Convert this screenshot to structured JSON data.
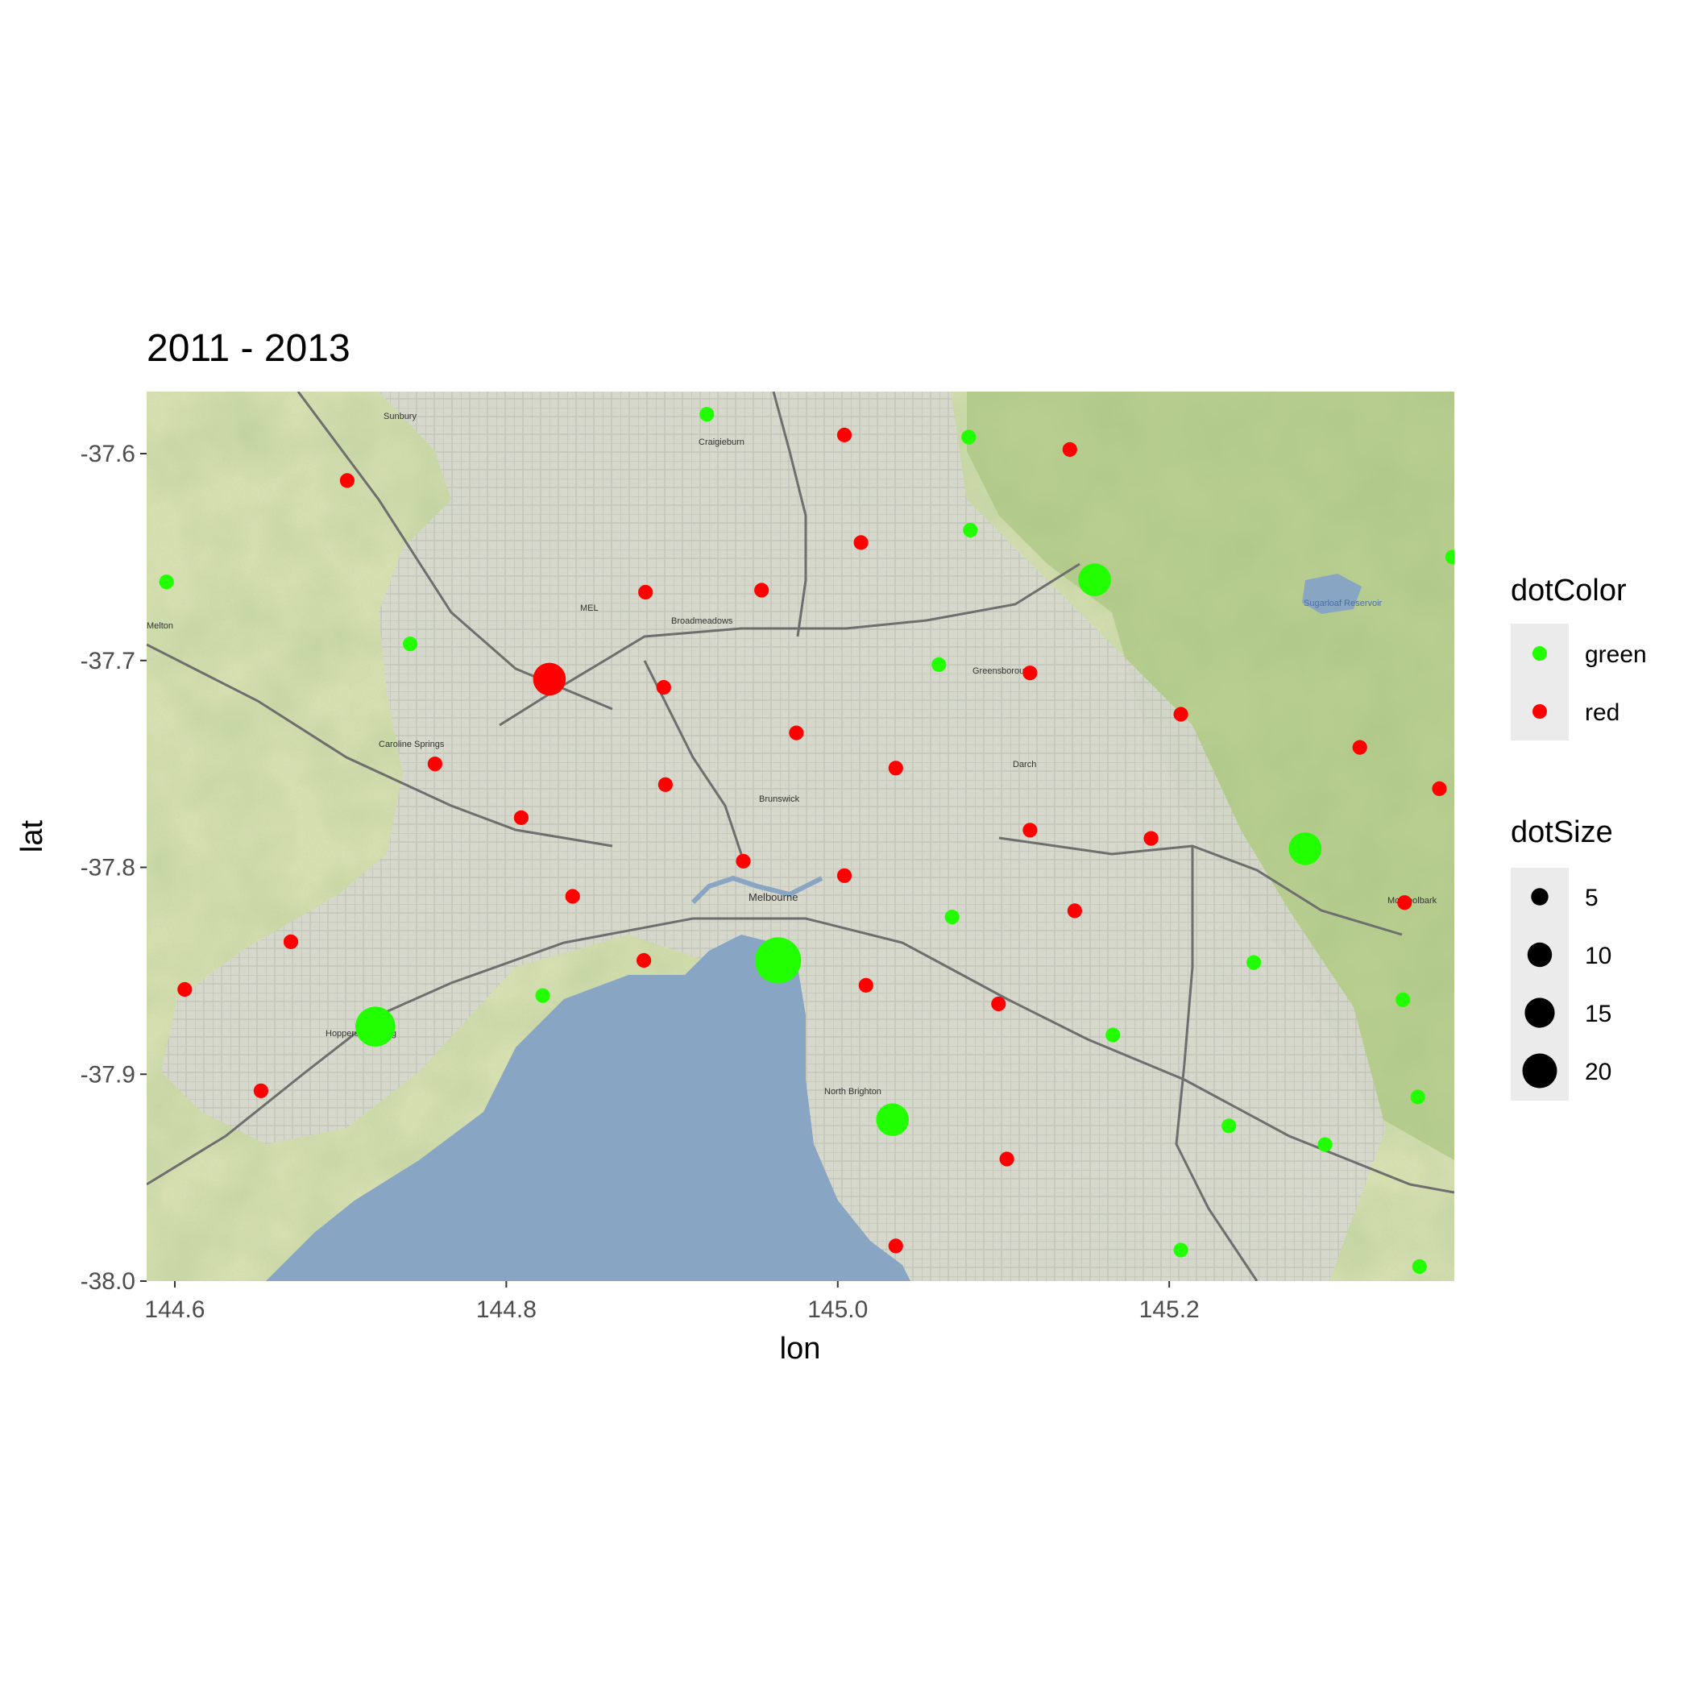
{
  "chart_data": {
    "type": "scatter",
    "title": "2011 - 2013",
    "xlabel": "lon",
    "ylabel": "lat",
    "xlim": [
      144.583,
      145.372
    ],
    "ylim": [
      -38.0,
      -37.57
    ],
    "x_ticks": [
      144.6,
      144.8,
      145.0,
      145.2
    ],
    "x_tick_labels": [
      "144.6",
      "144.8",
      "145.0",
      "145.2"
    ],
    "y_ticks": [
      -37.6,
      -37.7,
      -37.8,
      -37.9,
      -38.0
    ],
    "y_tick_labels": [
      "-37.6",
      "-37.7",
      "-37.8",
      "-37.9",
      "-38.0"
    ],
    "background": "street map of Melbourne (terrain tiles) with Port Phillip Bay",
    "map_labels": [
      "Sunbury",
      "Craigieburn",
      "MEL",
      "Broadmeadows",
      "Caroline Springs",
      "Greensborough",
      "Sugarloaf Reservoir",
      "Darch",
      "Brunswick",
      "Melbourne",
      "Hoppers Crossing",
      "North Brighton",
      "Mooroolbark",
      "Melton"
    ],
    "colors": {
      "green": "#22ff00",
      "red": "#ff0000"
    },
    "legend": {
      "color_title": "dotColor",
      "color_entries": [
        {
          "label": "green",
          "color": "#22ff00"
        },
        {
          "label": "red",
          "color": "#ff0000"
        }
      ],
      "size_title": "dotSize",
      "size_entries": [
        {
          "label": "5",
          "value": 5
        },
        {
          "label": "10",
          "value": 10
        },
        {
          "label": "15",
          "value": 15
        },
        {
          "label": "20",
          "value": 20
        }
      ],
      "placement": "right"
    },
    "series": [
      {
        "name": "green",
        "points": [
          {
            "lon": 144.921,
            "lat": -37.581,
            "size": 2
          },
          {
            "lon": 145.079,
            "lat": -37.592,
            "size": 2
          },
          {
            "lon": 145.08,
            "lat": -37.637,
            "size": 2
          },
          {
            "lon": 145.155,
            "lat": -37.661,
            "size": 10
          },
          {
            "lon": 144.595,
            "lat": -37.662,
            "size": 2
          },
          {
            "lon": 145.371,
            "lat": -37.65,
            "size": 2
          },
          {
            "lon": 144.742,
            "lat": -37.692,
            "size": 2
          },
          {
            "lon": 145.061,
            "lat": -37.702,
            "size": 2
          },
          {
            "lon": 145.282,
            "lat": -37.791,
            "size": 10
          },
          {
            "lon": 145.069,
            "lat": -37.824,
            "size": 2
          },
          {
            "lon": 144.964,
            "lat": -37.845,
            "size": 20
          },
          {
            "lon": 145.251,
            "lat": -37.846,
            "size": 2
          },
          {
            "lon": 144.822,
            "lat": -37.862,
            "size": 2
          },
          {
            "lon": 145.341,
            "lat": -37.864,
            "size": 2
          },
          {
            "lon": 144.721,
            "lat": -37.877,
            "size": 15
          },
          {
            "lon": 145.166,
            "lat": -37.881,
            "size": 2
          },
          {
            "lon": 145.35,
            "lat": -37.911,
            "size": 2
          },
          {
            "lon": 145.033,
            "lat": -37.922,
            "size": 10
          },
          {
            "lon": 145.236,
            "lat": -37.925,
            "size": 2
          },
          {
            "lon": 145.294,
            "lat": -37.934,
            "size": 2
          },
          {
            "lon": 145.207,
            "lat": -37.985,
            "size": 2
          },
          {
            "lon": 145.351,
            "lat": -37.993,
            "size": 2
          }
        ]
      },
      {
        "name": "red",
        "points": [
          {
            "lon": 145.004,
            "lat": -37.591,
            "size": 2
          },
          {
            "lon": 145.14,
            "lat": -37.598,
            "size": 2
          },
          {
            "lon": 144.704,
            "lat": -37.613,
            "size": 2
          },
          {
            "lon": 145.014,
            "lat": -37.643,
            "size": 2
          },
          {
            "lon": 144.884,
            "lat": -37.667,
            "size": 2
          },
          {
            "lon": 144.954,
            "lat": -37.666,
            "size": 2
          },
          {
            "lon": 144.826,
            "lat": -37.709,
            "size": 10
          },
          {
            "lon": 144.895,
            "lat": -37.713,
            "size": 2
          },
          {
            "lon": 145.116,
            "lat": -37.706,
            "size": 2
          },
          {
            "lon": 145.207,
            "lat": -37.726,
            "size": 2
          },
          {
            "lon": 144.975,
            "lat": -37.735,
            "size": 2
          },
          {
            "lon": 145.315,
            "lat": -37.742,
            "size": 2
          },
          {
            "lon": 144.757,
            "lat": -37.75,
            "size": 2
          },
          {
            "lon": 145.035,
            "lat": -37.752,
            "size": 2
          },
          {
            "lon": 144.896,
            "lat": -37.76,
            "size": 2
          },
          {
            "lon": 145.363,
            "lat": -37.762,
            "size": 2
          },
          {
            "lon": 144.809,
            "lat": -37.776,
            "size": 2
          },
          {
            "lon": 145.116,
            "lat": -37.782,
            "size": 2
          },
          {
            "lon": 145.189,
            "lat": -37.786,
            "size": 2
          },
          {
            "lon": 144.943,
            "lat": -37.797,
            "size": 2
          },
          {
            "lon": 145.004,
            "lat": -37.804,
            "size": 2
          },
          {
            "lon": 144.84,
            "lat": -37.814,
            "size": 2
          },
          {
            "lon": 145.342,
            "lat": -37.817,
            "size": 2
          },
          {
            "lon": 145.143,
            "lat": -37.821,
            "size": 2
          },
          {
            "lon": 144.67,
            "lat": -37.836,
            "size": 2
          },
          {
            "lon": 144.883,
            "lat": -37.845,
            "size": 2
          },
          {
            "lon": 145.017,
            "lat": -37.857,
            "size": 2
          },
          {
            "lon": 144.606,
            "lat": -37.859,
            "size": 2
          },
          {
            "lon": 145.097,
            "lat": -37.866,
            "size": 2
          },
          {
            "lon": 144.652,
            "lat": -37.908,
            "size": 2
          },
          {
            "lon": 145.102,
            "lat": -37.941,
            "size": 2
          },
          {
            "lon": 145.035,
            "lat": -37.983,
            "size": 2
          }
        ]
      }
    ]
  }
}
